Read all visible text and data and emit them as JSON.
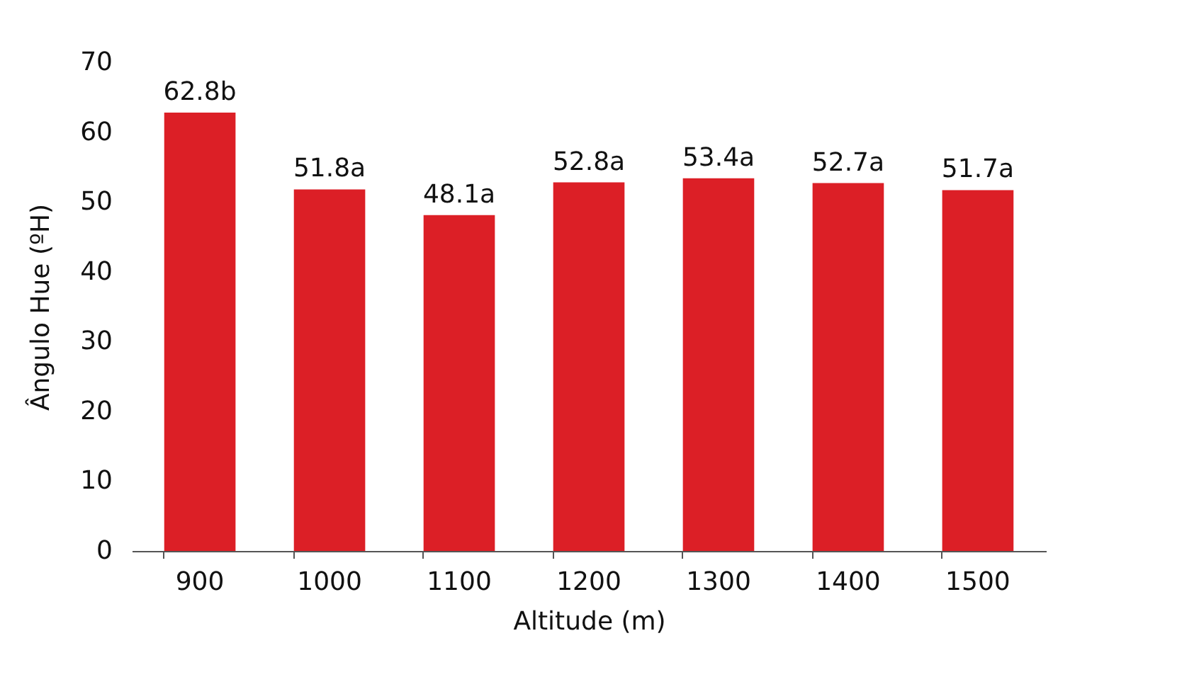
{
  "chart_data": {
    "type": "bar",
    "xlabel": "Altitude (m)",
    "ylabel": "Ângulo Hue (ºH)",
    "categories": [
      "900",
      "1000",
      "1100",
      "1200",
      "1300",
      "1400",
      "1500"
    ],
    "values": [
      62.8,
      51.8,
      48.1,
      52.8,
      53.4,
      52.7,
      51.7
    ],
    "value_labels": [
      "62.8b",
      "51.8a",
      "48.1a",
      "52.8a",
      "53.4a",
      "52.7a",
      "51.7a"
    ],
    "color": "#dc1f26",
    "ylim": [
      0,
      70
    ],
    "yticks": [
      0,
      10,
      20,
      30,
      40,
      50,
      60,
      70
    ]
  }
}
